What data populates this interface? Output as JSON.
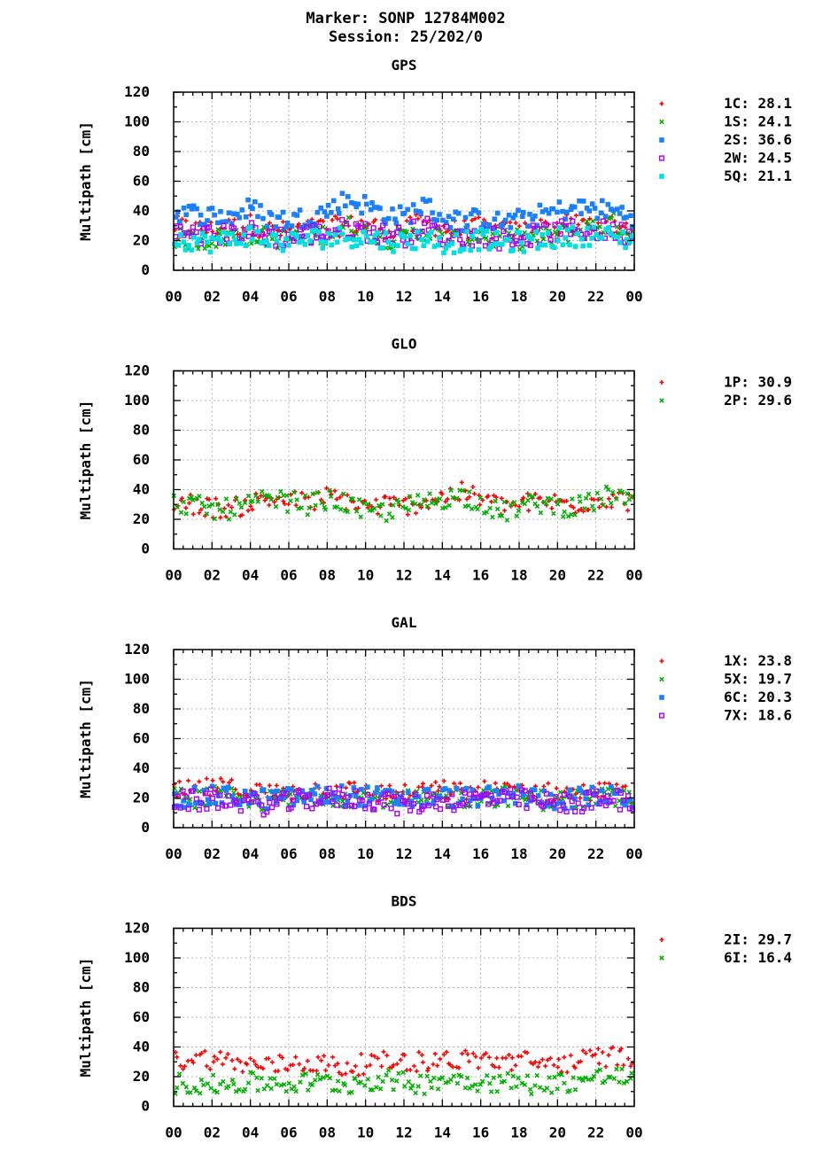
{
  "figure": {
    "title_line1": "Marker: SONP 12784M002",
    "title_line2": "Session: 25/202/0"
  },
  "chart_data": [
    {
      "type": "scatter",
      "title": "GPS",
      "ylabel": "Multipath [cm]",
      "xlabel": "",
      "ylim": [
        0,
        120
      ],
      "yticks": [
        0,
        20,
        40,
        60,
        80,
        100,
        120
      ],
      "xlim": [
        0,
        24
      ],
      "xticks": [
        "00",
        "02",
        "04",
        "06",
        "08",
        "10",
        "12",
        "14",
        "16",
        "18",
        "20",
        "22",
        "00"
      ],
      "grid": true,
      "legend_position": "right",
      "x": [
        0,
        1,
        2,
        3,
        4,
        5,
        6,
        7,
        8,
        9,
        10,
        11,
        12,
        13,
        14,
        15,
        16,
        17,
        18,
        19,
        20,
        21,
        22,
        23,
        24
      ],
      "series": [
        {
          "name": "1C",
          "legend_label": "1C: 28.1",
          "color": "#ff0000",
          "marker": "plus",
          "values": [
            30,
            28,
            27,
            29,
            31,
            27,
            26,
            28,
            29,
            30,
            31,
            28,
            27,
            33,
            28,
            27,
            29,
            26,
            27,
            28,
            30,
            31,
            32,
            31,
            28
          ]
        },
        {
          "name": "1S",
          "legend_label": "1S: 24.1",
          "color": "#00b000",
          "marker": "cross",
          "values": [
            22,
            20,
            21,
            23,
            24,
            22,
            21,
            23,
            25,
            30,
            26,
            22,
            21,
            27,
            22,
            21,
            24,
            20,
            21,
            22,
            24,
            26,
            30,
            32,
            24
          ]
        },
        {
          "name": "2S",
          "legend_label": "2S: 36.6",
          "color": "#1a80ff",
          "marker": "square",
          "values": [
            40,
            38,
            37,
            36,
            42,
            35,
            34,
            36,
            40,
            48,
            44,
            38,
            36,
            44,
            36,
            33,
            35,
            32,
            34,
            37,
            40,
            42,
            41,
            40,
            36
          ]
        },
        {
          "name": "2W",
          "legend_label": "2W: 24.5",
          "color": "#aa00ff",
          "marker": "open-square",
          "values": [
            25,
            24,
            23,
            24,
            26,
            23,
            22,
            24,
            26,
            28,
            27,
            24,
            23,
            30,
            24,
            22,
            24,
            21,
            22,
            24,
            26,
            27,
            27,
            26,
            24
          ]
        },
        {
          "name": "5Q",
          "legend_label": "5Q: 21.1",
          "color": "#00e0e0",
          "marker": "square",
          "values": [
            22,
            20,
            19,
            21,
            24,
            20,
            19,
            21,
            22,
            23,
            22,
            20,
            19,
            22,
            18,
            19,
            21,
            18,
            19,
            20,
            22,
            23,
            24,
            22,
            20
          ]
        }
      ]
    },
    {
      "type": "scatter",
      "title": "GLO",
      "ylabel": "Multipath [cm]",
      "xlabel": "",
      "ylim": [
        0,
        120
      ],
      "yticks": [
        0,
        20,
        40,
        60,
        80,
        100,
        120
      ],
      "xlim": [
        0,
        24
      ],
      "xticks": [
        "00",
        "02",
        "04",
        "06",
        "08",
        "10",
        "12",
        "14",
        "16",
        "18",
        "20",
        "22",
        "00"
      ],
      "grid": true,
      "legend_position": "right",
      "x": [
        0,
        1,
        2,
        3,
        4,
        5,
        6,
        7,
        8,
        9,
        10,
        11,
        12,
        13,
        14,
        15,
        16,
        17,
        18,
        19,
        20,
        21,
        22,
        23,
        24
      ],
      "series": [
        {
          "name": "1P",
          "legend_label": "1P: 30.9",
          "color": "#ff0000",
          "marker": "plus",
          "values": [
            32,
            30,
            28,
            27,
            31,
            34,
            33,
            31,
            35,
            33,
            28,
            30,
            29,
            32,
            35,
            38,
            34,
            29,
            30,
            32,
            31,
            30,
            33,
            35,
            30
          ]
        },
        {
          "name": "2P",
          "legend_label": "2P: 29.6",
          "color": "#00b000",
          "marker": "cross",
          "values": [
            31,
            30,
            26,
            27,
            30,
            33,
            32,
            30,
            33,
            31,
            24,
            25,
            28,
            31,
            34,
            36,
            32,
            24,
            28,
            31,
            29,
            28,
            32,
            38,
            28
          ]
        }
      ]
    },
    {
      "type": "scatter",
      "title": "GAL",
      "ylabel": "Multipath [cm]",
      "xlabel": "",
      "ylim": [
        0,
        120
      ],
      "yticks": [
        0,
        20,
        40,
        60,
        80,
        100,
        120
      ],
      "xlim": [
        0,
        24
      ],
      "xticks": [
        "00",
        "02",
        "04",
        "06",
        "08",
        "10",
        "12",
        "14",
        "16",
        "18",
        "20",
        "22",
        "00"
      ],
      "grid": true,
      "legend_position": "right",
      "x": [
        0,
        1,
        2,
        3,
        4,
        5,
        6,
        7,
        8,
        9,
        10,
        11,
        12,
        13,
        14,
        15,
        16,
        17,
        18,
        19,
        20,
        21,
        22,
        23,
        24
      ],
      "series": [
        {
          "name": "1X",
          "legend_label": "1X: 23.8",
          "color": "#ff0000",
          "marker": "plus",
          "values": [
            24,
            25,
            27,
            26,
            25,
            23,
            24,
            25,
            26,
            25,
            24,
            23,
            22,
            24,
            25,
            24,
            25,
            24,
            26,
            24,
            23,
            23,
            24,
            24,
            22
          ]
        },
        {
          "name": "5X",
          "legend_label": "5X: 19.7",
          "color": "#00b000",
          "marker": "cross",
          "values": [
            20,
            20,
            21,
            20,
            19,
            18,
            19,
            21,
            22,
            21,
            20,
            19,
            18,
            19,
            20,
            20,
            21,
            21,
            22,
            19,
            18,
            19,
            20,
            20,
            18
          ]
        },
        {
          "name": "6C",
          "legend_label": "6C: 20.3",
          "color": "#1a80ff",
          "marker": "square",
          "values": [
            21,
            20,
            21,
            21,
            20,
            19,
            20,
            21,
            22,
            22,
            21,
            20,
            19,
            20,
            21,
            20,
            21,
            20,
            22,
            20,
            19,
            20,
            21,
            21,
            19
          ]
        },
        {
          "name": "7X",
          "legend_label": "7X: 18.6",
          "color": "#aa00ff",
          "marker": "open-square",
          "values": [
            18,
            18,
            19,
            18,
            17,
            15,
            17,
            19,
            20,
            20,
            19,
            18,
            15,
            17,
            19,
            18,
            20,
            19,
            19,
            17,
            16,
            17,
            18,
            19,
            17
          ]
        }
      ]
    },
    {
      "type": "scatter",
      "title": "BDS",
      "ylabel": "Multipath [cm]",
      "xlabel": "",
      "ylim": [
        0,
        120
      ],
      "yticks": [
        0,
        20,
        40,
        60,
        80,
        100,
        120
      ],
      "xlim": [
        0,
        24
      ],
      "xticks": [
        "00",
        "02",
        "04",
        "06",
        "08",
        "10",
        "12",
        "14",
        "16",
        "18",
        "20",
        "22",
        "00"
      ],
      "grid": true,
      "legend_position": "right",
      "x": [
        0,
        1,
        2,
        3,
        4,
        5,
        6,
        7,
        8,
        9,
        10,
        11,
        12,
        13,
        14,
        15,
        16,
        17,
        18,
        19,
        20,
        21,
        22,
        23,
        24
      ],
      "series": [
        {
          "name": "2I",
          "legend_label": "2I: 29.7",
          "color": "#ff0000",
          "marker": "plus",
          "values": [
            30,
            33,
            32,
            30,
            28,
            27,
            29,
            30,
            28,
            26,
            29,
            30,
            31,
            30,
            32,
            31,
            32,
            30,
            31,
            29,
            29,
            30,
            33,
            34,
            30
          ]
        },
        {
          "name": "6I",
          "legend_label": "6I: 16.4",
          "color": "#00b000",
          "marker": "cross",
          "values": [
            15,
            16,
            14,
            15,
            16,
            16,
            15,
            16,
            16,
            15,
            17,
            18,
            16,
            15,
            19,
            18,
            17,
            16,
            16,
            15,
            16,
            17,
            19,
            21,
            16
          ]
        }
      ]
    }
  ]
}
